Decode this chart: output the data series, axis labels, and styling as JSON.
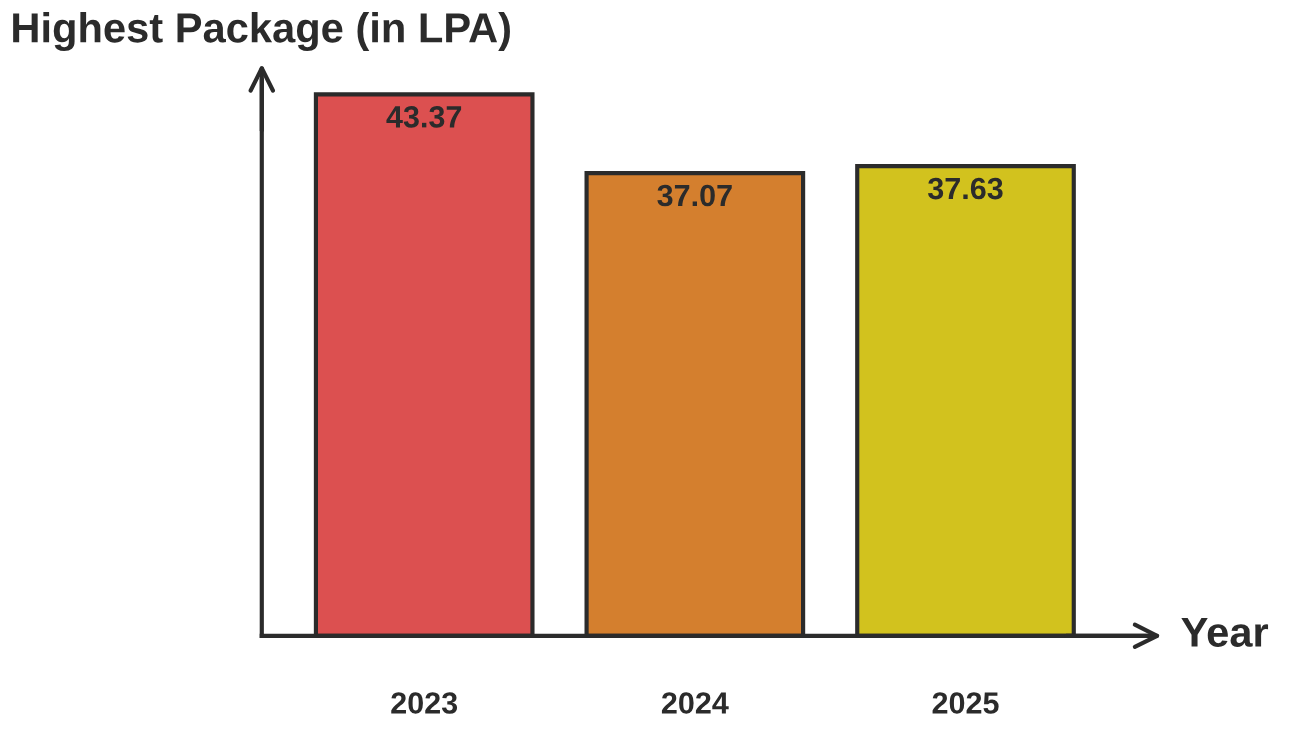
{
  "chart_data": {
    "type": "bar",
    "ylabel": "Highest Package (in LPA)",
    "xlabel": "Year",
    "categories": [
      "2023",
      "2024",
      "2025"
    ],
    "values": [
      43.37,
      37.07,
      37.63
    ],
    "colors": [
      "#dc5050",
      "#d47f2e",
      "#d2c21e"
    ],
    "ylim": [
      0,
      44.5
    ],
    "data_labels": true,
    "grid": false,
    "legend": false,
    "tick_labels": "x"
  }
}
